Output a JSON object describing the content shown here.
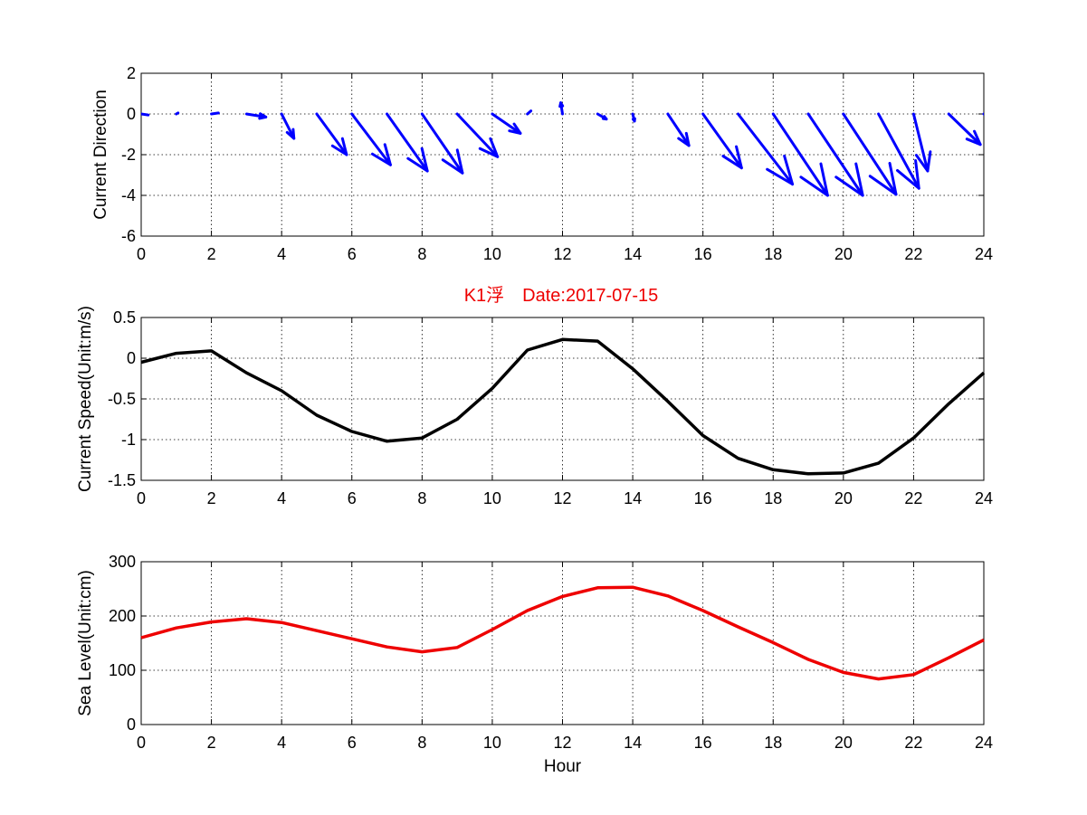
{
  "figure_title": "K1浮　Date:2017-07-15",
  "colors": {
    "arrows": "#0000ff",
    "speed": "#000000",
    "sea_level": "#ee0000",
    "title": "#ee0000"
  },
  "chart_data": [
    {
      "type": "quiver",
      "ylabel": "Current Direction",
      "xlim": [
        0,
        24
      ],
      "ylim": [
        -6,
        2
      ],
      "xticks": [
        0,
        2,
        4,
        6,
        8,
        10,
        12,
        14,
        16,
        18,
        20,
        22,
        24
      ],
      "yticks": [
        -6,
        -4,
        -2,
        0,
        2
      ],
      "grid": true,
      "x": [
        0,
        1,
        2,
        3,
        4,
        5,
        6,
        7,
        8,
        9,
        10,
        11,
        12,
        13,
        14,
        15,
        16,
        17,
        18,
        19,
        20,
        21,
        22,
        23,
        24
      ],
      "u": [
        0.2,
        0.05,
        0.2,
        0.55,
        0.35,
        0.85,
        1.1,
        1.15,
        1.15,
        1.15,
        0.8,
        0.1,
        -0.05,
        0.25,
        0.05,
        0.6,
        1.1,
        1.55,
        1.55,
        1.55,
        1.5,
        1.15,
        0.4,
        0.9,
        0.9
      ],
      "v": [
        -0.05,
        0.05,
        0.05,
        -0.15,
        -1.2,
        -2.0,
        -2.5,
        -2.8,
        -2.9,
        -2.1,
        -0.95,
        0.15,
        0.55,
        -0.25,
        -0.35,
        -1.55,
        -2.65,
        -3.45,
        -4.0,
        -4.0,
        -3.95,
        -3.65,
        -2.8,
        -1.5,
        -1.5
      ]
    },
    {
      "type": "line",
      "ylabel": "Current Speed(Unit:m/s)",
      "xlim": [
        0,
        24
      ],
      "ylim": [
        -1.5,
        0.5
      ],
      "xticks": [
        0,
        2,
        4,
        6,
        8,
        10,
        12,
        14,
        16,
        18,
        20,
        22,
        24
      ],
      "yticks": [
        -1.5,
        -1,
        -0.5,
        0,
        0.5
      ],
      "ytick_labels": [
        "-1.5",
        "-1",
        "-0.5",
        "0",
        "0.5"
      ],
      "grid": true,
      "x": [
        0,
        1,
        2,
        3,
        4,
        5,
        6,
        7,
        8,
        9,
        10,
        11,
        12,
        13,
        14,
        15,
        16,
        17,
        18,
        19,
        20,
        21,
        22,
        23,
        24
      ],
      "y": [
        -0.05,
        0.06,
        0.09,
        -0.18,
        -0.4,
        -0.7,
        -0.9,
        -1.02,
        -0.98,
        -0.75,
        -0.37,
        0.1,
        0.23,
        0.21,
        -0.13,
        -0.53,
        -0.95,
        -1.23,
        -1.37,
        -1.42,
        -1.41,
        -1.29,
        -0.98,
        -0.56,
        -0.18
      ]
    },
    {
      "type": "line",
      "ylabel": "Sea Level(Unit:cm)",
      "xlabel": "Hour",
      "xlim": [
        0,
        24
      ],
      "ylim": [
        0,
        300
      ],
      "xticks": [
        0,
        2,
        4,
        6,
        8,
        10,
        12,
        14,
        16,
        18,
        20,
        22,
        24
      ],
      "yticks": [
        0,
        100,
        200,
        300
      ],
      "grid": true,
      "x": [
        0,
        1,
        2,
        3,
        4,
        5,
        6,
        7,
        8,
        9,
        10,
        11,
        12,
        13,
        14,
        15,
        16,
        17,
        18,
        19,
        20,
        21,
        22,
        23,
        24
      ],
      "y": [
        160,
        178,
        189,
        195,
        188,
        173,
        158,
        143,
        134,
        142,
        175,
        210,
        236,
        252,
        253,
        237,
        210,
        180,
        151,
        120,
        96,
        84,
        92,
        123,
        156
      ]
    }
  ]
}
